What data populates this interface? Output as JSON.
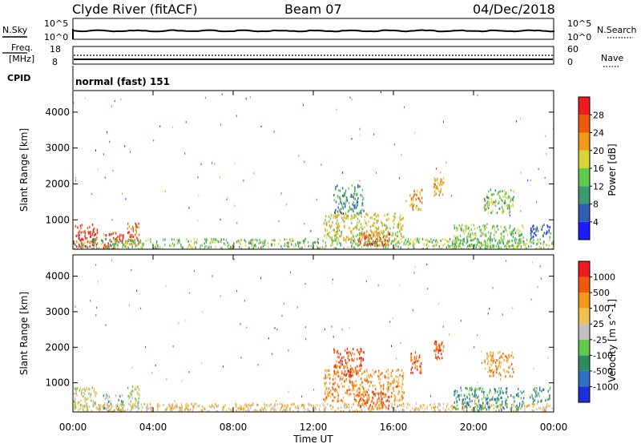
{
  "header": {
    "station": "Clyde River (fitACF)",
    "beam": "Beam 07",
    "date": "04/Dec/2018"
  },
  "top_panels": {
    "nsky": {
      "label": "N.Sky",
      "left_ticks": [
        "10^5",
        "10^0"
      ],
      "right_ticks": [
        "10^5",
        "10^0"
      ],
      "right_label": "N.Search"
    },
    "freq": {
      "label_line1": "Freq.",
      "label_line2": "[MHz]",
      "left_ticks": [
        "18",
        "8"
      ],
      "right_ticks": [
        "60",
        "0"
      ],
      "right_label": "Nave"
    },
    "cpid": {
      "label": "CPID",
      "text": "normal (fast) 151"
    }
  },
  "x_axis": {
    "label": "Time UT",
    "ticks": [
      "00:00",
      "04:00",
      "08:00",
      "12:00",
      "16:00",
      "20:00",
      "00:00"
    ]
  },
  "chart_data": [
    {
      "type": "heatmap",
      "quantity": "Power",
      "colorbar_label": "Power [dB]",
      "ylabel": "Slant Range [km]",
      "xlabel": "",
      "ylim": [
        180,
        4600
      ],
      "xlim": [
        0,
        24
      ],
      "y_ticks": [
        1000,
        2000,
        3000,
        4000
      ],
      "colorbar_ticks": [
        "4",
        "8",
        "12",
        "16",
        "20",
        "24",
        "28"
      ],
      "colorbar_colors": [
        "#1c1cff",
        "#2f5fb2",
        "#3d9a6f",
        "#62c94d",
        "#d8d43a",
        "#f39a1a",
        "#f05a0c",
        "#ee1c1c"
      ],
      "scatter_regions": [
        {
          "t": [
            0.0,
            1.2
          ],
          "r": [
            200,
            900
          ],
          "level": 7
        },
        {
          "t": [
            1.5,
            2.5
          ],
          "r": [
            200,
            700
          ],
          "level": 7
        },
        {
          "t": [
            2.7,
            3.3
          ],
          "r": [
            300,
            950
          ],
          "level": 6
        },
        {
          "t": [
            0.0,
            24.0
          ],
          "r": [
            180,
            500
          ],
          "level": 3
        },
        {
          "t": [
            12.5,
            16.5
          ],
          "r": [
            400,
            1200
          ],
          "level": 4
        },
        {
          "t": [
            14.2,
            15.8
          ],
          "r": [
            300,
            700
          ],
          "level": 6
        },
        {
          "t": [
            13.0,
            14.5
          ],
          "r": [
            1200,
            2000
          ],
          "level": 2
        },
        {
          "t": [
            16.8,
            17.4
          ],
          "r": [
            1300,
            1900
          ],
          "level": 5
        },
        {
          "t": [
            18.0,
            18.5
          ],
          "r": [
            1700,
            2200
          ],
          "level": 5
        },
        {
          "t": [
            19.0,
            22.5
          ],
          "r": [
            250,
            900
          ],
          "level": 3
        },
        {
          "t": [
            20.5,
            22.0
          ],
          "r": [
            1200,
            1900
          ],
          "level": 3
        },
        {
          "t": [
            22.8,
            23.8
          ],
          "r": [
            500,
            900
          ],
          "level": 1
        }
      ]
    },
    {
      "type": "heatmap",
      "quantity": "Velocity",
      "colorbar_label": "Velocity [m s^-1]",
      "ylabel": "Slant Range [km]",
      "xlabel": "Time UT",
      "ylim": [
        180,
        4600
      ],
      "xlim": [
        0,
        24
      ],
      "y_ticks": [
        1000,
        2000,
        3000,
        4000
      ],
      "colorbar_ticks": [
        "1000",
        "500",
        "100",
        "25",
        "-25",
        "-100",
        "-500",
        "-1000"
      ],
      "colorbar_colors": [
        "#1c2fd8",
        "#2f6fc8",
        "#2f8a5f",
        "#62c94d",
        "#c0c0c0",
        "#f0c050",
        "#f39a1a",
        "#f05a0c",
        "#ee1c1c"
      ],
      "scatter_regions": [
        {
          "t": [
            0.0,
            1.2
          ],
          "r": [
            200,
            900
          ],
          "level": 4
        },
        {
          "t": [
            1.5,
            2.5
          ],
          "r": [
            200,
            700
          ],
          "level": 3
        },
        {
          "t": [
            2.7,
            3.3
          ],
          "r": [
            300,
            950
          ],
          "level": 4
        },
        {
          "t": [
            0.0,
            24.0
          ],
          "r": [
            180,
            450
          ],
          "level": 5
        },
        {
          "t": [
            12.5,
            16.5
          ],
          "r": [
            500,
            1400
          ],
          "level": 6
        },
        {
          "t": [
            14.2,
            15.8
          ],
          "r": [
            300,
            800
          ],
          "level": 7
        },
        {
          "t": [
            13.0,
            14.5
          ],
          "r": [
            1200,
            2000
          ],
          "level": 7
        },
        {
          "t": [
            16.8,
            17.4
          ],
          "r": [
            1300,
            1900
          ],
          "level": 7
        },
        {
          "t": [
            18.0,
            18.5
          ],
          "r": [
            1700,
            2200
          ],
          "level": 7
        },
        {
          "t": [
            19.0,
            22.5
          ],
          "r": [
            250,
            900
          ],
          "level": 2
        },
        {
          "t": [
            20.5,
            22.0
          ],
          "r": [
            1200,
            1900
          ],
          "level": 6
        },
        {
          "t": [
            22.8,
            23.8
          ],
          "r": [
            500,
            900
          ],
          "level": 2
        }
      ]
    }
  ]
}
